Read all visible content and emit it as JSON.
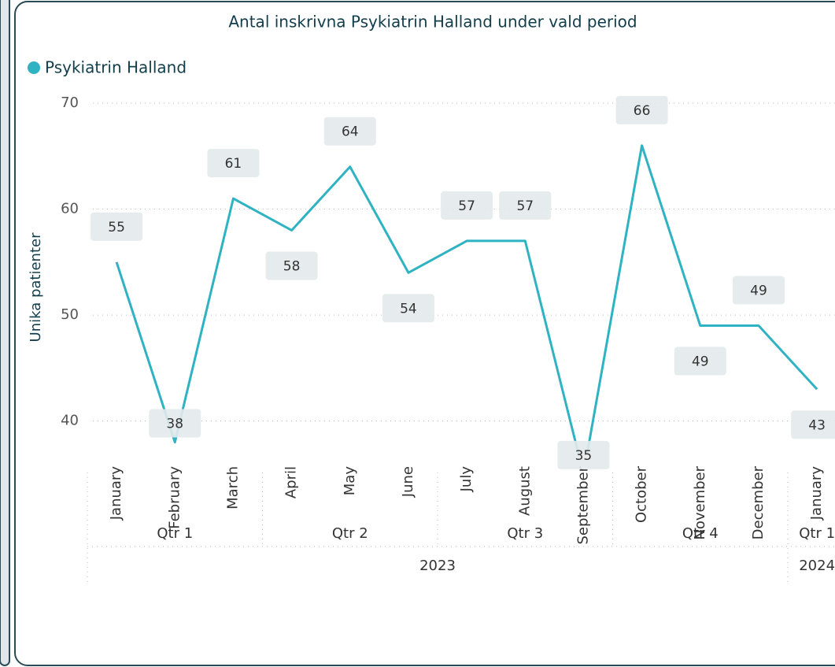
{
  "chart_data": {
    "type": "line",
    "title": "Antal inskrivna Psykiatrin Halland under vald period",
    "y_label": "Unika patienter",
    "categories": [
      "January",
      "February",
      "March",
      "April",
      "May",
      "June",
      "July",
      "August",
      "September",
      "October",
      "November",
      "December",
      "January"
    ],
    "quarters": [
      "Qtr 1",
      "Qtr 1",
      "Qtr 1",
      "Qtr 2",
      "Qtr 2",
      "Qtr 2",
      "Qtr 3",
      "Qtr 3",
      "Qtr 3",
      "Qtr 4",
      "Qtr 4",
      "Qtr 4",
      "Qtr 1"
    ],
    "years": [
      "2023",
      "2023",
      "2023",
      "2023",
      "2023",
      "2023",
      "2023",
      "2023",
      "2023",
      "2023",
      "2023",
      "2023",
      "2024"
    ],
    "series": [
      {
        "name": "Psykiatrin Halland",
        "color": "#2fb3c2",
        "values": [
          55,
          38,
          61,
          58,
          64,
          54,
          57,
          57,
          35,
          66,
          49,
          49,
          43
        ]
      }
    ],
    "ylim": [
      37,
      70
    ],
    "yticks": [
      40,
      50,
      60,
      70
    ],
    "grid": true,
    "legend": "top-left"
  }
}
